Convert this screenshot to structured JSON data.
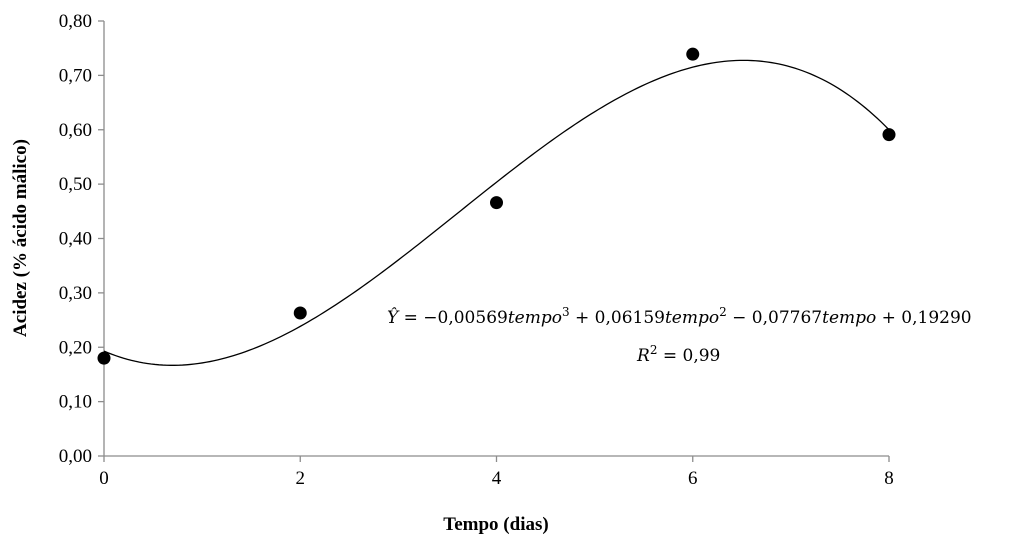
{
  "chart_data": {
    "type": "scatter",
    "xlabel": "Tempo (dias)",
    "ylabel": "Acidez (% ácido málico)",
    "xlim": [
      0,
      8
    ],
    "ylim": [
      0,
      0.8
    ],
    "x_ticks": [
      "0",
      "2",
      "4",
      "6",
      "8"
    ],
    "y_ticks": [
      "0,00",
      "0,10",
      "0,20",
      "0,30",
      "0,40",
      "0,50",
      "0,60",
      "0,70",
      "0,80"
    ],
    "grid": false,
    "points": [
      {
        "x": 0,
        "y": 0.18
      },
      {
        "x": 2,
        "y": 0.263
      },
      {
        "x": 4,
        "y": 0.466
      },
      {
        "x": 6,
        "y": 0.739
      },
      {
        "x": 8,
        "y": 0.591
      }
    ],
    "fit": {
      "coefficients": [
        0.1929,
        -0.07767,
        0.06159,
        -0.00569
      ],
      "equation": {
        "lhs": "Ŷ = ",
        "c3": "−0,00569",
        "c2": " + 0,06159",
        "c1": " − 0,07767",
        "c0": " + 0,19290",
        "var": "tempo",
        "exp3": "3",
        "exp2": "2"
      },
      "r2": {
        "label": "R",
        "exp": "2",
        "value": " = 0,99"
      }
    }
  }
}
